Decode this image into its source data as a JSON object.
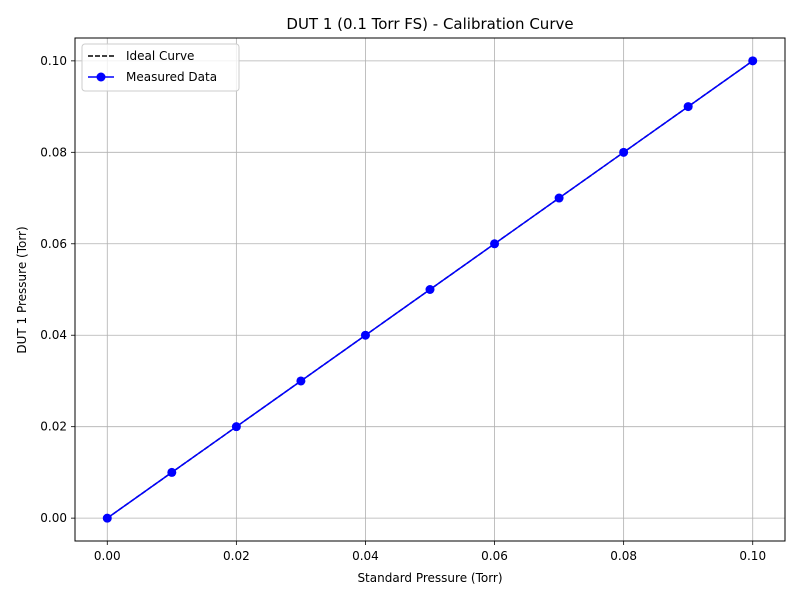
{
  "chart_data": {
    "type": "line",
    "title": "DUT 1 (0.1 Torr FS) - Calibration Curve",
    "xlabel": "Standard Pressure (Torr)",
    "ylabel": "DUT 1 Pressure (Torr)",
    "xlim": [
      -0.005,
      0.105
    ],
    "ylim": [
      -0.005,
      0.105
    ],
    "xticks": [
      0.0,
      0.02,
      0.04,
      0.06,
      0.08,
      0.1
    ],
    "xtick_labels": [
      "0.00",
      "0.02",
      "0.04",
      "0.06",
      "0.08",
      "0.10"
    ],
    "yticks": [
      0.0,
      0.02,
      0.04,
      0.06,
      0.08,
      0.1
    ],
    "ytick_labels": [
      "0.00",
      "0.02",
      "0.04",
      "0.06",
      "0.08",
      "0.10"
    ],
    "grid": true,
    "legend_position": "top-left",
    "series": [
      {
        "name": "Ideal Curve",
        "color": "#000000",
        "style": "dashed",
        "marker": "none",
        "x": [
          0.0,
          0.01,
          0.02,
          0.03,
          0.04,
          0.05,
          0.06,
          0.07,
          0.08,
          0.09,
          0.1
        ],
        "y": [
          0.0,
          0.01,
          0.02,
          0.03,
          0.04,
          0.05,
          0.06,
          0.07,
          0.08,
          0.09,
          0.1
        ]
      },
      {
        "name": "Measured Data",
        "color": "#0000ff",
        "style": "solid",
        "marker": "circle",
        "x": [
          0.0,
          0.01,
          0.02,
          0.03,
          0.04,
          0.05,
          0.06,
          0.07,
          0.08,
          0.09,
          0.1
        ],
        "y": [
          0.0,
          0.01,
          0.02,
          0.03,
          0.04,
          0.05,
          0.06,
          0.07,
          0.08,
          0.09,
          0.1
        ]
      }
    ]
  }
}
